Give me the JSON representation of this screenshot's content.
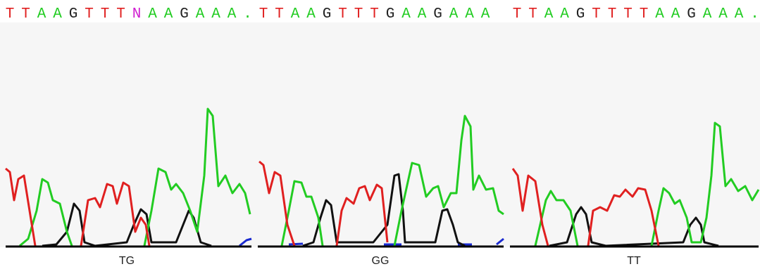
{
  "panels": [
    {
      "sequence": [
        "T",
        "T",
        "A",
        "A",
        "G",
        "T",
        "T",
        "T",
        "N",
        "A",
        "A",
        "G",
        "A",
        "A",
        "A",
        "."
      ],
      "genotype": "TG"
    },
    {
      "sequence": [
        "T",
        "T",
        "A",
        "A",
        "G",
        "T",
        "T",
        "T",
        "G",
        "A",
        "A",
        "G",
        "A",
        "A",
        "A"
      ],
      "genotype": "GG"
    },
    {
      "sequence": [
        "T",
        "T",
        "A",
        "A",
        "G",
        "T",
        "T",
        "T",
        "T",
        "A",
        "A",
        "G",
        "A",
        "A",
        "A",
        "."
      ],
      "genotype": "TT"
    }
  ],
  "base_colors": {
    "T": "#e02020",
    "A": "#22cc22",
    "G": "#222222",
    "N": "#d020d0",
    ".": "#22cc22"
  }
}
